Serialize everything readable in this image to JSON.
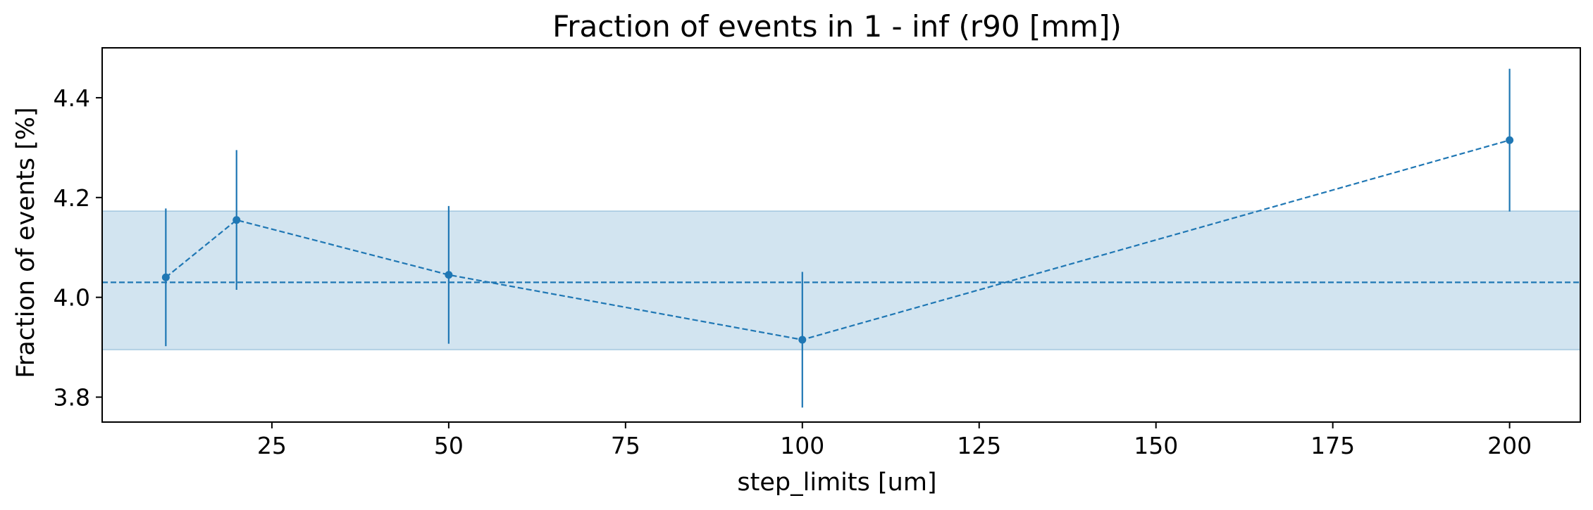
{
  "chart_data": {
    "type": "line",
    "title": "Fraction of events in 1 - inf (r90 [mm])",
    "xlabel": "step_limits [um]",
    "ylabel": "Fraction of events [%]",
    "xlim": [
      1,
      210
    ],
    "ylim": [
      3.75,
      4.5
    ],
    "xticks": [
      25,
      50,
      75,
      100,
      125,
      150,
      175,
      200
    ],
    "yticks": [
      3.8,
      4.0,
      4.2,
      4.4
    ],
    "grid": false,
    "series": [
      {
        "x": [
          10,
          20,
          50,
          100,
          200
        ],
        "y": [
          4.04,
          4.155,
          4.045,
          3.915,
          4.315
        ],
        "yerr": [
          0.138,
          0.14,
          0.138,
          0.136,
          0.143
        ],
        "line_style": "dashed",
        "marker": "circle"
      }
    ],
    "reference": {
      "mean": 4.03,
      "band": [
        3.895,
        4.173
      ]
    },
    "colors": {
      "series": "#1f77b4",
      "band": "#1f77b4"
    }
  }
}
